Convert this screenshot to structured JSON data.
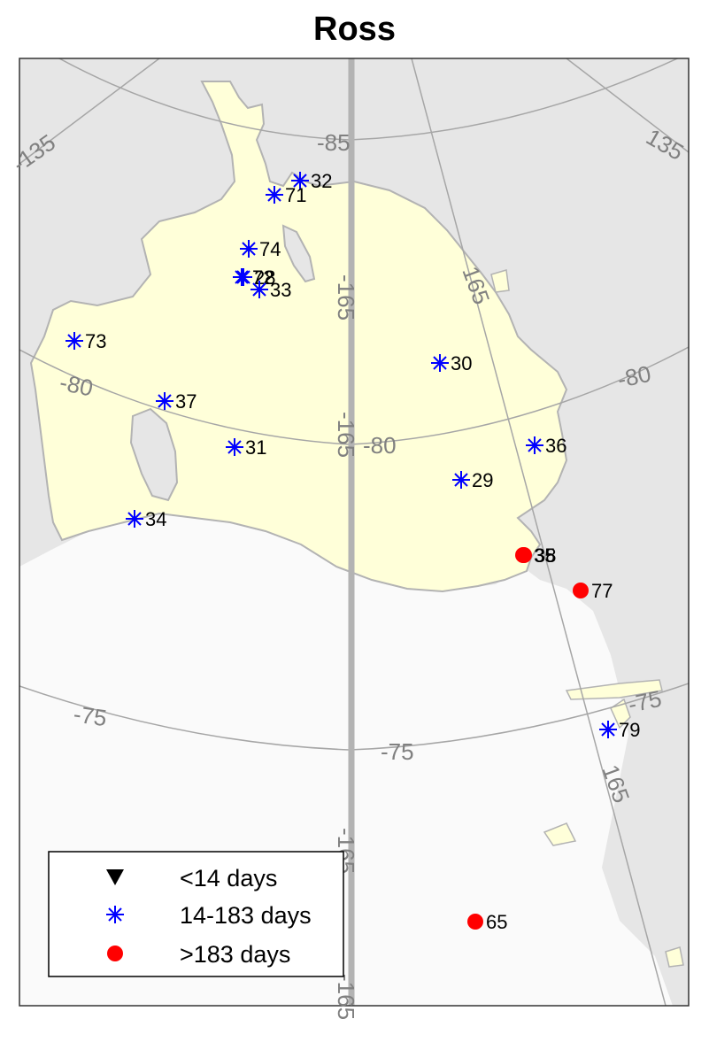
{
  "title": "Ross",
  "colors": {
    "ocean": "#e6e6e6",
    "ice_shelf": "#ffffd9",
    "sea_ice": "#fafafa",
    "coast": "#b3b3b3",
    "grid": "#a6a6a6",
    "grid_label": "#808080",
    "star": "#0000ff",
    "dot": "#ff0000",
    "triangle": "#000000"
  },
  "grid_labels": {
    "lat_85": "-85",
    "lat_80_left": "-80",
    "lat_80_center": "-80",
    "lat_80_right": "-80",
    "lat_75_left": "-75",
    "lat_75_center": "-75",
    "lat_75_right": "-75",
    "lon_135_left": "-135",
    "lon_135_right": "135",
    "lon_165_upper": "165",
    "lon_165_lower": "165",
    "center_overlap_1": "-165",
    "center_overlap_2": "-165",
    "center_overlap_3": "-165",
    "center_overlap_4": "-165"
  },
  "legend": {
    "triangle_label": "<14 days",
    "star_label": "14-183 days",
    "dot_label": ">183 days"
  },
  "stations": [
    {
      "id": "32",
      "type": "star"
    },
    {
      "id": "71",
      "type": "star"
    },
    {
      "id": "74",
      "type": "star"
    },
    {
      "id": "72",
      "type": "star"
    },
    {
      "id": "28",
      "type": "star"
    },
    {
      "id": "33",
      "type": "star"
    },
    {
      "id": "73",
      "type": "star"
    },
    {
      "id": "30",
      "type": "star"
    },
    {
      "id": "37",
      "type": "star"
    },
    {
      "id": "31",
      "type": "star"
    },
    {
      "id": "36",
      "type": "star"
    },
    {
      "id": "29",
      "type": "star"
    },
    {
      "id": "34",
      "type": "star"
    },
    {
      "id": "35",
      "type": "dot"
    },
    {
      "id": "38",
      "type": "dot"
    },
    {
      "id": "77",
      "type": "dot"
    },
    {
      "id": "79",
      "type": "star"
    },
    {
      "id": "65",
      "type": "dot"
    }
  ]
}
